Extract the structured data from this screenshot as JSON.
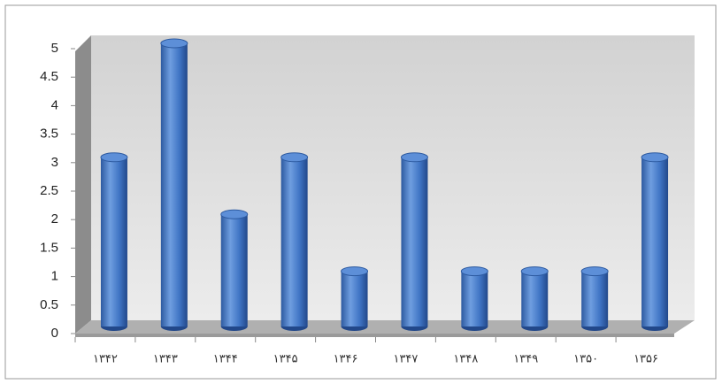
{
  "chart_data": {
    "type": "bar",
    "categories": [
      "۱۳۴۲",
      "۱۳۴۳",
      "۱۳۴۴",
      "۱۳۴۵",
      "۱۳۴۶",
      "۱۳۴۷",
      "۱۳۴۸",
      "۱۳۴۹",
      "۱۳۵۰",
      "۱۳۵۶"
    ],
    "values": [
      3,
      5,
      2,
      3,
      1,
      3,
      1,
      1,
      1,
      3
    ],
    "color": "#3f74c4",
    "ylim": [
      0,
      5
    ],
    "yticks": [
      0,
      0.5,
      1,
      1.5,
      2,
      2.5,
      3,
      3.5,
      4,
      4.5,
      5
    ],
    "grid": false
  }
}
